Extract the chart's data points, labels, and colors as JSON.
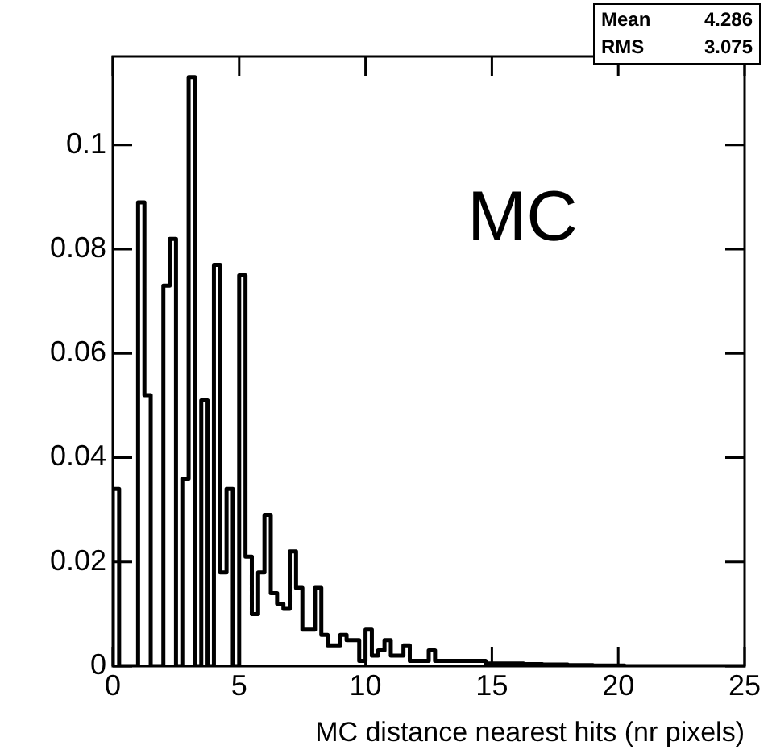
{
  "chart_data": {
    "type": "histogram",
    "xlabel": "MC distance nearest hits (nr pixels)",
    "annotations": [
      "MC",
      "Mean",
      "4.286",
      "RMS",
      "3.075"
    ],
    "bins": [
      0,
      0.25,
      0.5,
      0.75,
      1,
      1.25,
      1.5,
      1.75,
      2,
      2.25,
      2.5,
      2.75,
      3,
      3.25,
      3.5,
      3.75,
      4,
      4.25,
      4.5,
      4.75,
      5,
      5.25,
      5.5,
      5.75,
      6,
      6.25,
      6.5,
      6.75,
      7,
      7.25,
      7.5,
      7.75,
      8,
      8.25,
      8.5,
      8.75,
      9,
      9.25,
      9.5,
      9.75,
      10,
      10.25,
      10.5,
      10.75,
      11,
      11.25,
      11.5,
      11.75,
      12,
      12.25,
      12.5,
      12.75,
      13,
      13.25,
      13.5,
      13.75,
      14,
      14.25,
      14.5,
      14.75,
      15,
      15.25,
      15.5,
      15.75,
      16,
      16.25,
      16.5,
      16.75,
      17,
      17.25,
      17.5,
      17.75,
      18,
      18.25,
      18.5,
      18.75,
      19,
      19.25,
      19.5,
      19.75,
      20,
      20.25,
      20.5,
      20.75,
      21,
      21.25,
      21.5,
      21.75,
      22,
      22.25,
      22.5,
      22.75,
      23,
      23.25,
      23.5,
      23.75,
      24,
      24.25,
      24.5,
      24.75,
      25
    ],
    "values": [
      0.034,
      0,
      0,
      0,
      0.089,
      0.052,
      0,
      0,
      0.073,
      0.082,
      0,
      0.036,
      0.113,
      0,
      0.051,
      0,
      0.077,
      0.018,
      0.034,
      0,
      0.075,
      0.021,
      0.01,
      0.018,
      0.029,
      0.014,
      0.012,
      0.011,
      0.022,
      0.015,
      0.007,
      0.007,
      0.015,
      0.006,
      0.004,
      0.004,
      0.006,
      0.005,
      0.005,
      0.001,
      0.007,
      0.002,
      0.003,
      0.005,
      0.002,
      0.002,
      0.004,
      0.001,
      0.001,
      0.001,
      0.003,
      0.001,
      0.001,
      0.001,
      0.001,
      0.001,
      0.001,
      0.001,
      0.001,
      0.0005,
      0.0005,
      0.0005,
      0.0005,
      0.0005,
      0.0005,
      0.0004,
      0.0004,
      0.0004,
      0.0003,
      0.0003,
      0.0003,
      0.0003,
      0.0002,
      0.0002,
      0.0002,
      0.0002,
      0.0001,
      0.0001,
      0.0001,
      0.0001,
      0.0001,
      0,
      0,
      0,
      0,
      0,
      0,
      0,
      0,
      0,
      0,
      0,
      0,
      0,
      0,
      0,
      0,
      0,
      0,
      0
    ],
    "color": "#000000",
    "xlim": [
      0,
      25
    ],
    "xticks": [
      0,
      5,
      10,
      15,
      20,
      25
    ],
    "ylim": [
      0,
      0.117
    ],
    "yticks": [
      0,
      0.02,
      0.04,
      0.06,
      0.08,
      0.1
    ],
    "grid": false,
    "legend": false
  }
}
